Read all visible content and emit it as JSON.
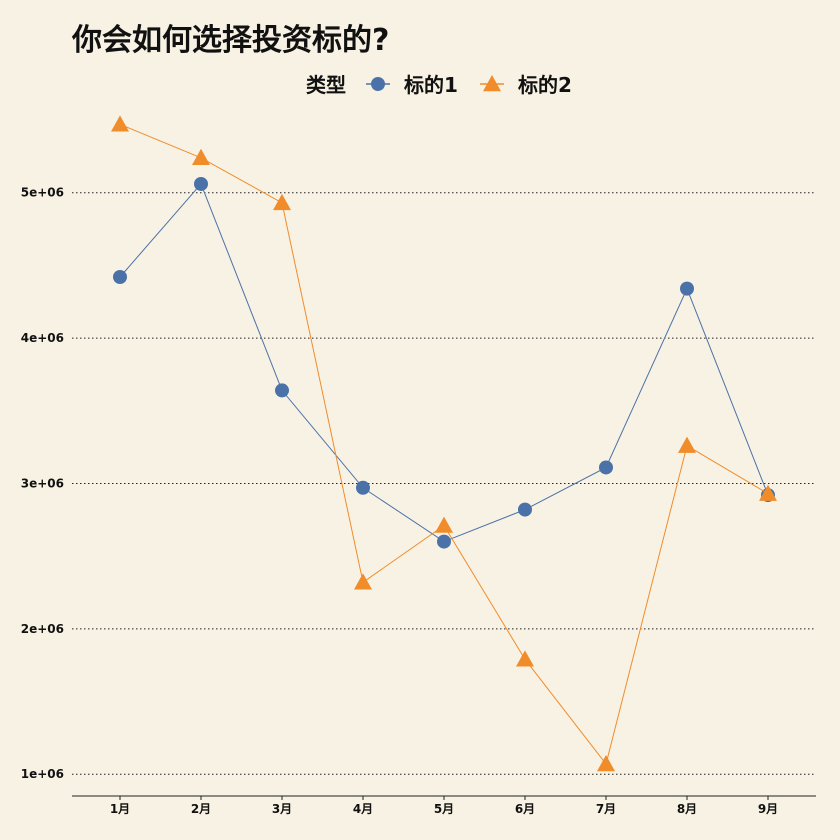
{
  "chart_data": {
    "type": "line",
    "title": "你会如何选择投资标的?",
    "legend": {
      "title": "类型",
      "placement": "top"
    },
    "x": [
      "1月",
      "2月",
      "3月",
      "4月",
      "5月",
      "6月",
      "7月",
      "8月",
      "9月"
    ],
    "series": [
      {
        "name": "标的1",
        "marker": "circle",
        "color": "#4a72a8",
        "values": [
          4420000,
          5060000,
          3640000,
          2970000,
          2600000,
          2820000,
          3110000,
          4340000,
          2920000
        ]
      },
      {
        "name": "标的2",
        "marker": "triangle",
        "color": "#f08c2a",
        "values": [
          5470000,
          5240000,
          4930000,
          2320000,
          2710000,
          1790000,
          1070000,
          3260000,
          2930000
        ]
      }
    ],
    "yticks": [
      {
        "value": 1000000,
        "label": "1e+06"
      },
      {
        "value": 2000000,
        "label": "2e+06"
      },
      {
        "value": 3000000,
        "label": "3e+06"
      },
      {
        "value": 4000000,
        "label": "4e+06"
      },
      {
        "value": 5000000,
        "label": "5e+06"
      }
    ],
    "ylim": [
      850000,
      5500000
    ],
    "grid": "horizontal-dotted",
    "xlabel": "",
    "ylabel": ""
  }
}
